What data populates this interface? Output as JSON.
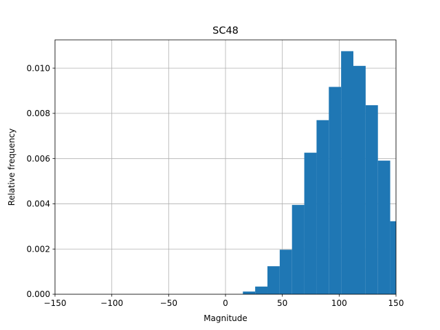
{
  "chart_data": {
    "type": "bar",
    "title": "SC48",
    "xlabel": "Magnitude",
    "ylabel": "Relative frequency",
    "xlim": [
      -150,
      150
    ],
    "ylim": [
      0,
      0.01125
    ],
    "xticks": [
      -150,
      -100,
      -50,
      0,
      50,
      100,
      150
    ],
    "xtick_labels": [
      "−150",
      "−100",
      "−50",
      "0",
      "50",
      "100",
      "150"
    ],
    "yticks": [
      0,
      0.002,
      0.004,
      0.006,
      0.008,
      0.01
    ],
    "ytick_labels": [
      "0.000",
      "0.002",
      "0.004",
      "0.006",
      "0.008",
      "0.010"
    ],
    "grid": true,
    "bar_color": "#1f77b4",
    "bins": [
      {
        "x0": 15.3,
        "x1": 26.1,
        "value": 0.00012
      },
      {
        "x0": 26.1,
        "x1": 36.9,
        "value": 0.00034
      },
      {
        "x0": 36.9,
        "x1": 47.7,
        "value": 0.00124
      },
      {
        "x0": 47.7,
        "x1": 58.5,
        "value": 0.00197
      },
      {
        "x0": 58.5,
        "x1": 69.3,
        "value": 0.00395
      },
      {
        "x0": 69.3,
        "x1": 80.1,
        "value": 0.00626
      },
      {
        "x0": 80.1,
        "x1": 90.9,
        "value": 0.0077
      },
      {
        "x0": 90.9,
        "x1": 101.7,
        "value": 0.00917
      },
      {
        "x0": 101.7,
        "x1": 112.5,
        "value": 0.01075
      },
      {
        "x0": 112.5,
        "x1": 123.3,
        "value": 0.0101
      },
      {
        "x0": 123.3,
        "x1": 134.1,
        "value": 0.00836
      },
      {
        "x0": 134.1,
        "x1": 144.9,
        "value": 0.00591
      },
      {
        "x0": 144.9,
        "x1": 155.7,
        "value": 0.00323
      }
    ]
  }
}
